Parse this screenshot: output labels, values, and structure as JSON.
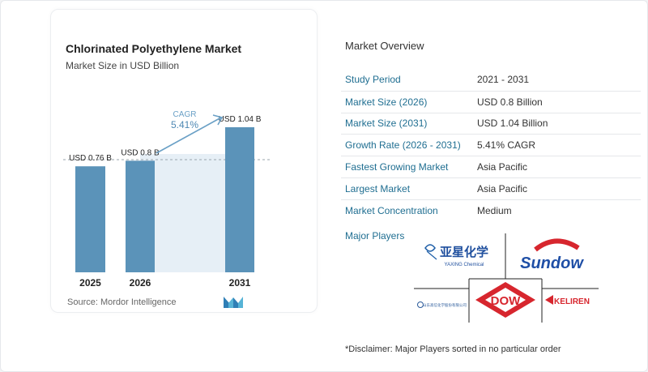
{
  "chart": {
    "title": "Chlorinated Polyethylene Market",
    "subtitle": "Market Size in USD Billion",
    "source": "Source:  Mordor Intelligence",
    "cagr_label": "CAGR",
    "cagr_value": "5.41%"
  },
  "chart_data": {
    "type": "bar",
    "categories": [
      "2025",
      "2026",
      "2031"
    ],
    "values": [
      0.76,
      0.8,
      1.04
    ],
    "data_labels": [
      "USD 0.76 B",
      "USD 0.8 B",
      "USD 1.04 B"
    ],
    "title": "Chlorinated Polyethylene Market",
    "subtitle": "Market Size in USD Billion",
    "ylim": [
      0,
      1.04
    ],
    "colors": {
      "bar": "#5b93b9",
      "bar_light": "#e6eff6",
      "arrow": "#6aa0c6"
    }
  },
  "overview": {
    "title": "Market Overview",
    "rows": [
      {
        "label": "Study Period",
        "value": "2021 - 2031"
      },
      {
        "label": "Market Size (2026)",
        "value": "USD 0.8 Billion"
      },
      {
        "label": "Market Size (2031)",
        "value": "USD 1.04 Billion"
      },
      {
        "label": "Growth Rate (2026 - 2031)",
        "value": "5.41% CAGR"
      },
      {
        "label": "Fastest Growing Market",
        "value": "Asia Pacific"
      },
      {
        "label": "Largest Market",
        "value": "Asia Pacific"
      },
      {
        "label": "Market Concentration",
        "value": "Medium"
      }
    ],
    "major_players_title": "Major Players",
    "players": {
      "yaxing": "亚星化学",
      "yaxing_sub": "YAXING Chemical",
      "sundow": "Sundow",
      "dow": "DOW",
      "keliren": "KELIREN",
      "small": "山东高信化学股份有限公司"
    },
    "disclaimer": "*Disclaimer: Major Players sorted in no particular order"
  }
}
